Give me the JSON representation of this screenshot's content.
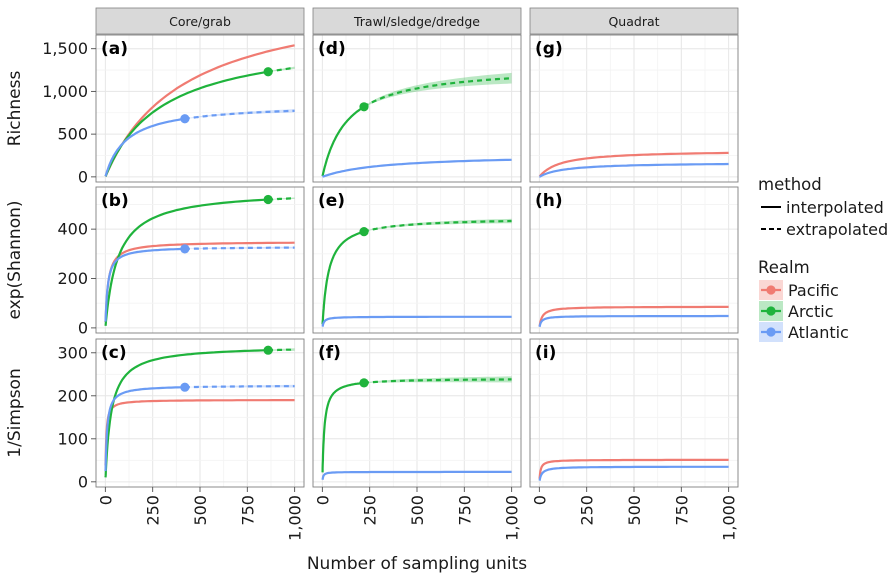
{
  "colors": {
    "Pacific": "#F07B72",
    "Arctic": "#1FB33C",
    "Atlantic": "#6A9BF4"
  },
  "chart_data": {
    "type": "line",
    "xlabel": "Number of sampling units",
    "columns": [
      "Core/grab",
      "Trawl/sledge/dredge",
      "Quadrat"
    ],
    "rows": [
      {
        "label": "Richness",
        "ylim": [
          0,
          1600
        ],
        "ticks": [
          0,
          500,
          1000,
          1500
        ],
        "tick_labels": [
          "0",
          "500",
          "1,000",
          "1,500"
        ]
      },
      {
        "label": "exp(Shannon)",
        "ylim": [
          0,
          550
        ],
        "ticks": [
          0,
          200,
          400
        ],
        "tick_labels": [
          "0",
          "200",
          "400"
        ]
      },
      {
        "label": "1/Simpson",
        "ylim": [
          0,
          320
        ],
        "ticks": [
          0,
          100,
          200,
          300
        ],
        "tick_labels": [
          "0",
          "100",
          "200",
          "300"
        ]
      }
    ],
    "xlim": [
      0,
      1000
    ],
    "x_ticks": [
      0,
      250,
      500,
      750,
      1000
    ],
    "x_tick_labels": [
      "0",
      "250",
      "500",
      "750",
      "1,000"
    ],
    "legend": {
      "position": "right",
      "method_title": "method",
      "methods": [
        "interpolated",
        "extrapolated"
      ],
      "realm_title": "Realm",
      "realms": [
        "Pacific",
        "Arctic",
        "Atlantic"
      ]
    },
    "panels": [
      {
        "label": "(a)",
        "row": 0,
        "col": 0,
        "series": [
          {
            "name": "Pacific",
            "obs_x": 1000,
            "obs_y": 1540,
            "plateau": 1850,
            "k": 420,
            "ci": 0
          },
          {
            "name": "Arctic",
            "obs_x": 860,
            "obs_y": 1230,
            "plateau": 1600,
            "k": 300,
            "ci": 35
          },
          {
            "name": "Atlantic",
            "obs_x": 420,
            "obs_y": 680,
            "plateau": 850,
            "k": 110,
            "ci": 25
          }
        ]
      },
      {
        "label": "(b)",
        "row": 1,
        "col": 0,
        "series": [
          {
            "name": "Pacific",
            "obs_x": 1000,
            "obs_y": 345,
            "plateau": 350,
            "k": 14,
            "ci": 0
          },
          {
            "name": "Arctic",
            "obs_x": 860,
            "obs_y": 520,
            "plateau": 560,
            "k": 65,
            "ci": 8
          },
          {
            "name": "Atlantic",
            "obs_x": 420,
            "obs_y": 320,
            "plateau": 330,
            "k": 12,
            "ci": 5
          }
        ]
      },
      {
        "label": "(c)",
        "row": 2,
        "col": 0,
        "series": [
          {
            "name": "Pacific",
            "obs_x": 1000,
            "obs_y": 190,
            "plateau": 192,
            "k": 4,
            "ci": 0
          },
          {
            "name": "Arctic",
            "obs_x": 860,
            "obs_y": 306,
            "plateau": 312,
            "k": 30,
            "ci": 8
          },
          {
            "name": "Atlantic",
            "obs_x": 420,
            "obs_y": 220,
            "plateau": 223,
            "k": 8,
            "ci": 4
          }
        ]
      },
      {
        "label": "(d)",
        "row": 0,
        "col": 1,
        "series": [
          {
            "name": "Arctic",
            "obs_x": 220,
            "obs_y": 820,
            "plateau": 1300,
            "k": 130,
            "ci": 70
          },
          {
            "name": "Atlantic",
            "obs_x": 1000,
            "obs_y": 200,
            "plateau": 260,
            "k": 320,
            "ci": 0
          }
        ]
      },
      {
        "label": "(e)",
        "row": 1,
        "col": 1,
        "series": [
          {
            "name": "Arctic",
            "obs_x": 220,
            "obs_y": 390,
            "plateau": 445,
            "k": 32,
            "ci": 10
          },
          {
            "name": "Atlantic",
            "obs_x": 1000,
            "obs_y": 45,
            "plateau": 46,
            "k": 8,
            "ci": 0
          }
        ]
      },
      {
        "label": "(f)",
        "row": 2,
        "col": 1,
        "series": [
          {
            "name": "Arctic",
            "obs_x": 220,
            "obs_y": 230,
            "plateau": 240,
            "k": 10,
            "ci": 8
          },
          {
            "name": "Atlantic",
            "obs_x": 1000,
            "obs_y": 23,
            "plateau": 23.5,
            "k": 4,
            "ci": 0
          }
        ]
      },
      {
        "label": "(g)",
        "row": 0,
        "col": 2,
        "series": [
          {
            "name": "Pacific",
            "obs_x": 1000,
            "obs_y": 280,
            "plateau": 320,
            "k": 110,
            "ci": 0
          },
          {
            "name": "Atlantic",
            "obs_x": 1000,
            "obs_y": 150,
            "plateau": 180,
            "k": 130,
            "ci": 0
          }
        ]
      },
      {
        "label": "(h)",
        "row": 1,
        "col": 2,
        "series": [
          {
            "name": "Pacific",
            "obs_x": 1000,
            "obs_y": 85,
            "plateau": 86,
            "k": 14,
            "ci": 0
          },
          {
            "name": "Atlantic",
            "obs_x": 1000,
            "obs_y": 48,
            "plateau": 48.5,
            "k": 10,
            "ci": 0
          }
        ]
      },
      {
        "label": "(i)",
        "row": 2,
        "col": 2,
        "series": [
          {
            "name": "Pacific",
            "obs_x": 1000,
            "obs_y": 51,
            "plateau": 51.5,
            "k": 6,
            "ci": 0
          },
          {
            "name": "Atlantic",
            "obs_x": 1000,
            "obs_y": 35,
            "plateau": 35.5,
            "k": 12,
            "ci": 0
          }
        ]
      }
    ]
  }
}
